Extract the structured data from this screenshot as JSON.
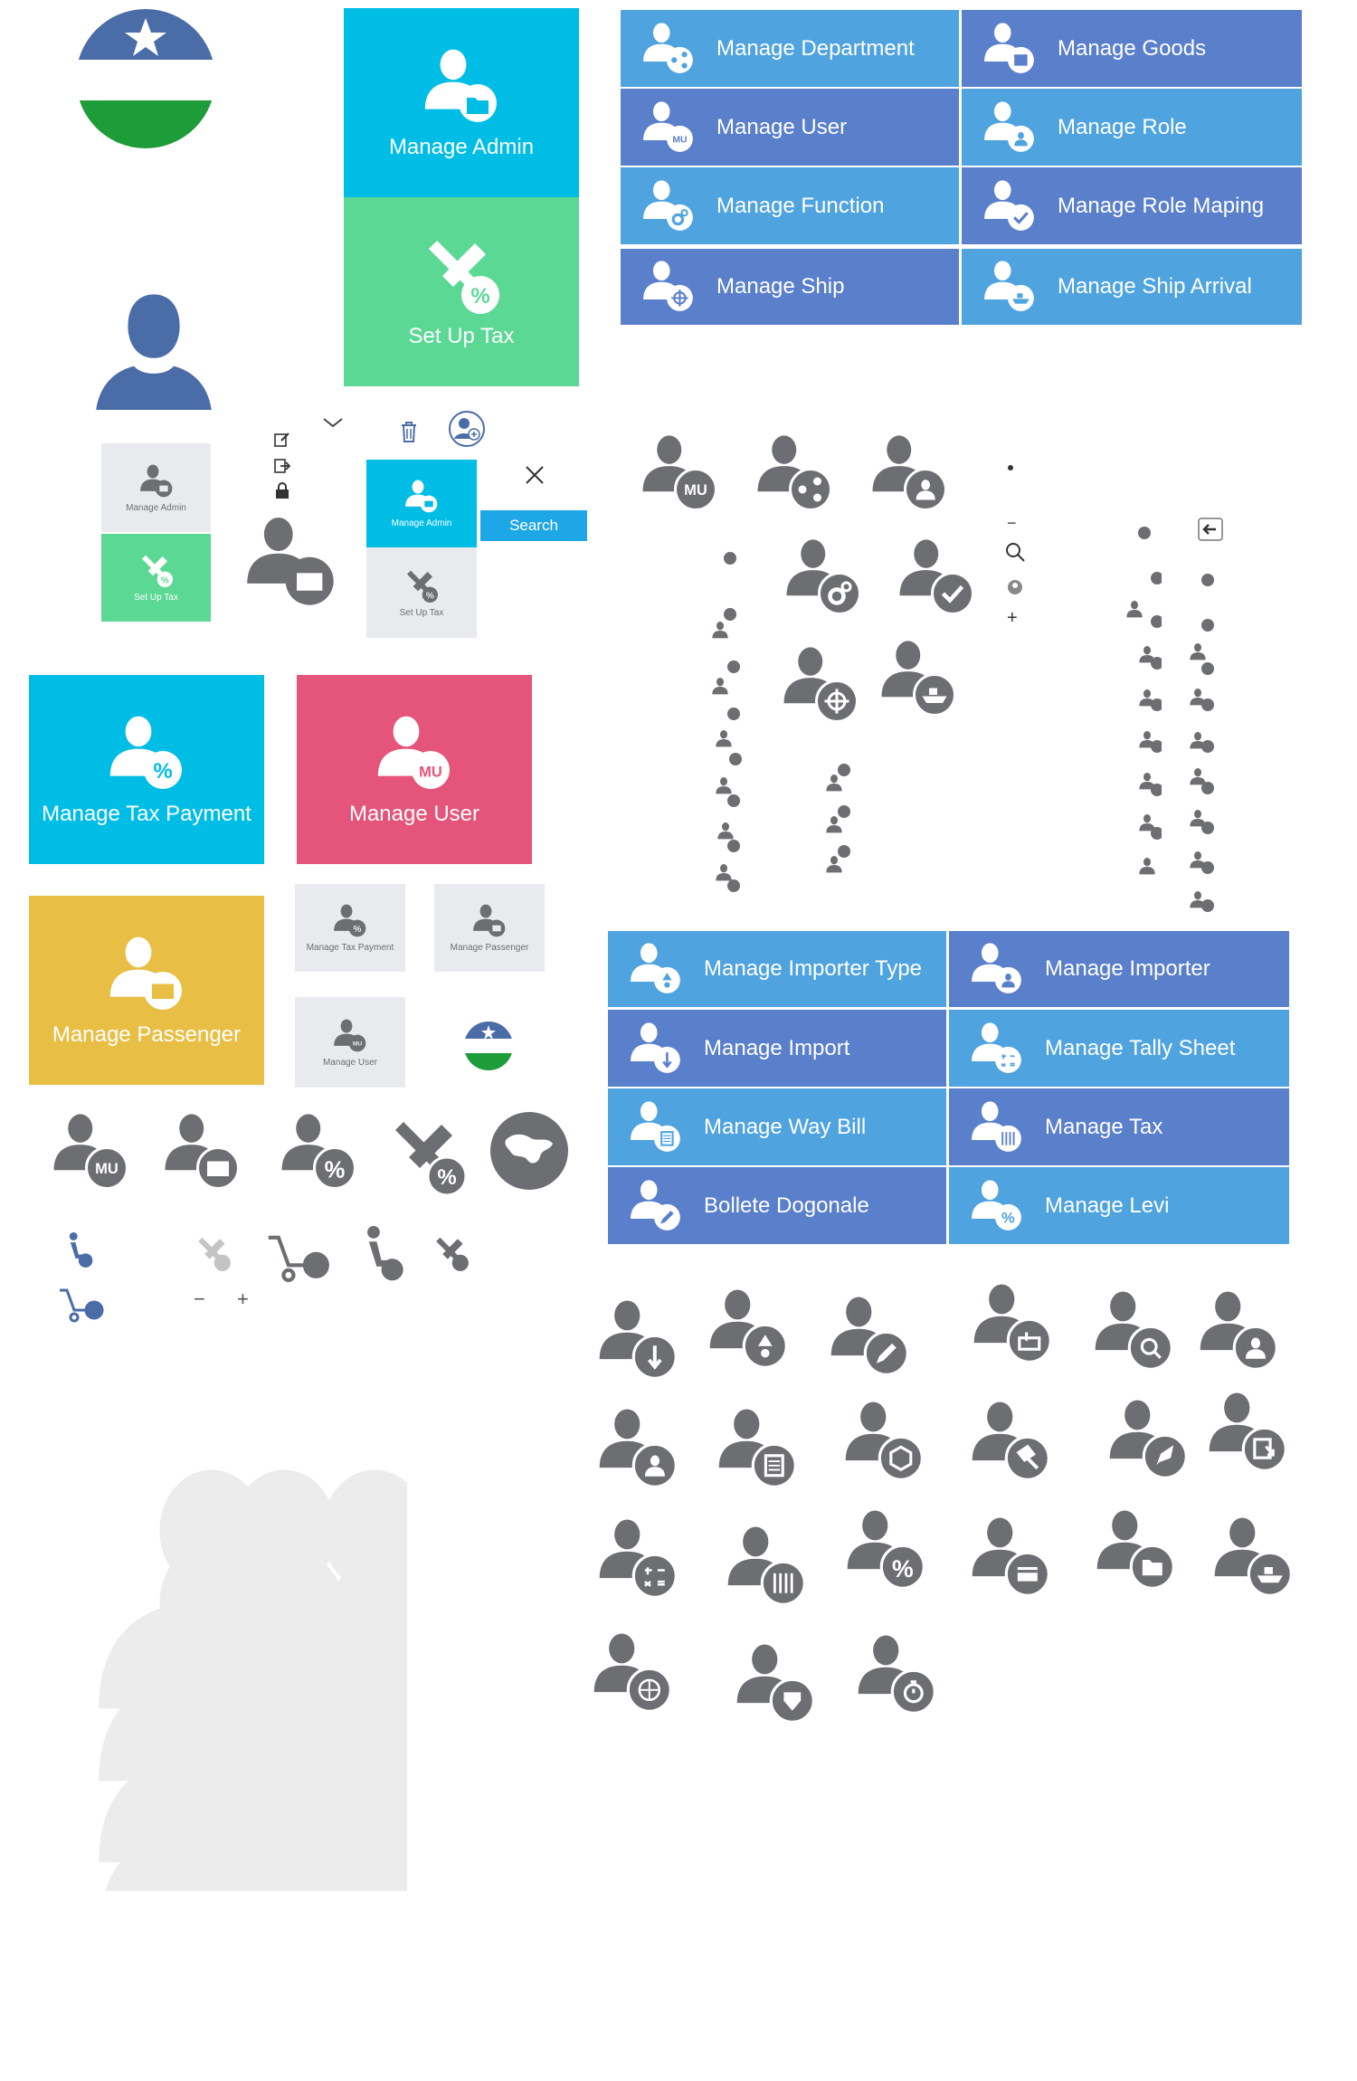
{
  "colors": {
    "blue_a": "#4fa3df",
    "blue_b": "#5a7fcb",
    "cyan": "#00bde6",
    "green": "#5cd895",
    "pink": "#e5547a",
    "gold": "#e8be44",
    "gray": "#6d6e71",
    "light": "#e8eaee",
    "dark_blue": "#4a6da7",
    "flag_green": "#1e9c3a"
  },
  "top_tiles": {
    "manage_admin": "Manage Admin",
    "set_up_tax": "Set Up Tax"
  },
  "menu_a": [
    {
      "label": "Manage Department",
      "badge": "share"
    },
    {
      "label": "Manage Goods",
      "badge": "box"
    },
    {
      "label": "Manage User",
      "badge": "MU"
    },
    {
      "label": "Manage Role",
      "badge": "person"
    },
    {
      "label": "Manage Function",
      "badge": "gears"
    },
    {
      "label": "Manage Role Maping",
      "badge": "check"
    },
    {
      "label": "Manage Ship",
      "badge": "wheel"
    },
    {
      "label": "Manage Ship Arrival",
      "badge": "ship"
    }
  ],
  "small_panel": {
    "admin": "Manage Admin",
    "tax": "Set Up Tax"
  },
  "search": {
    "label": "Search"
  },
  "big_tiles": {
    "tax_payment": "Manage Tax Payment",
    "user": "Manage User",
    "passenger": "Manage Passenger",
    "mu": "MU"
  },
  "small_tiles": {
    "tax_payment": "Manage Tax Payment",
    "passenger": "Manage Passenger",
    "user": "Manage User"
  },
  "badges": {
    "mu": "MU"
  },
  "menu_b": [
    {
      "label": "Manage Importer Type",
      "badge": "triangle"
    },
    {
      "label": "Manage Importer",
      "badge": "person"
    },
    {
      "label": "Manage Import",
      "badge": "arrow"
    },
    {
      "label": "Manage Tally Sheet",
      "badge": "calc"
    },
    {
      "label": "Manage Way Bill",
      "badge": "doc"
    },
    {
      "label": "Manage Tax",
      "badge": "bars"
    },
    {
      "label": "Bollete Dogonale",
      "badge": "pen"
    },
    {
      "label": "Manage Levi",
      "badge": "percent"
    }
  ],
  "icons": {
    "minus": "−",
    "plus": "+",
    "close": "✕"
  }
}
